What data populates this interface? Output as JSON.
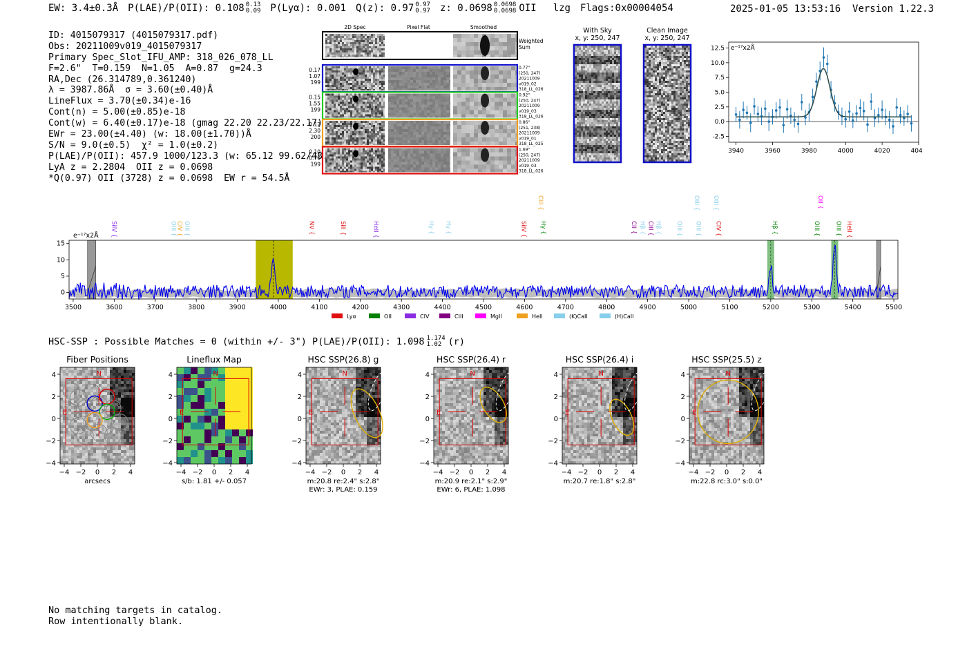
{
  "header": {
    "ew": "EW: 3.4±0.3Å",
    "plae": "P(LAE)/P(OII): 0.108",
    "plae_hi": "0.13",
    "plae_lo": "0.09",
    "plya": "P(Lyα): 0.001",
    "qz": "Q(z): 0.97",
    "qz_hi": "0.97",
    "qz_lo": "0.97",
    "z": "z: 0.0698",
    "z_hi": "0.0698",
    "z_lo": "0.0698",
    "line": "OII",
    "lzg": "lzg",
    "flags": "Flags:0x00004054",
    "timestamp": "2025-01-05 13:53:16",
    "version": "Version 1.22.3"
  },
  "info_lines": [
    "ID: 4015079317 (4015079317.pdf)",
    "Obs: 20211009v019_4015079317",
    "Primary Spec_Slot_IFU_AMP: 318_026_078_LL",
    "F=2.6\"  T=0.159  N=1.05  A=0.87  g=24.3",
    "RA,Dec (26.314789,0.361240)",
    "λ = 3987.86Å  σ = 3.60(±0.40)Å",
    "LineFlux = 3.70(±0.34)e-16",
    "Cont(n) = 5.00(±0.85)e-18",
    "Cont(w) = 6.40(±0.17)e-18 (gmag 22.20 22.23/22.17)",
    "EWr = 23.00(±4.40) (w: 18.00(±1.70))Å",
    "S/N = 9.0(±0.5)  χ² = 1.0(±0.2)",
    "P(LAE)/P(OII): 457.9 1000/123.3 (w: 65.12 99.62/48.66)",
    "LyA z = 2.2804  OII z = 0.0698",
    "*Q(0.97) OII (3728) z = 0.0698  EW r = 54.5Å"
  ],
  "cutouts": {
    "col_titles": [
      "2D Spec",
      "Pixel Flat",
      "Smoothed"
    ],
    "weighted_label": "Weighted Sum",
    "rows": [
      {
        "left": [
          "0.17",
          "1.07",
          "199"
        ],
        "right": [
          "0.77\"",
          "(250, 247)",
          "20211009",
          "v019_02",
          "318_LL_026"
        ],
        "color": "#1010c8"
      },
      {
        "left": [
          "0.15",
          "1.55",
          "199"
        ],
        "right": [
          "0.92\"",
          "(250, 247)",
          "20211009",
          "v019_03",
          "318_LL_026"
        ],
        "color": "#22cc22"
      },
      {
        "left": [
          "0.12",
          "2.30",
          "200"
        ],
        "right": [
          "0.86\"",
          "(251, 238)",
          "20211009",
          "v019_01",
          "318_LL_025"
        ],
        "color": "#f0a020"
      },
      {
        "left": [
          "0.10",
          "0.70",
          "199"
        ],
        "right": [
          "1.69\"",
          "(250, 247)",
          "20211009",
          "v019_03",
          "318_LL_026"
        ],
        "color": "#e01010"
      }
    ]
  },
  "sky": {
    "with_sky_title": "With Sky",
    "with_sky_xy": "x, y: 250, 247",
    "clean_title": "Clean Image",
    "clean_xy": "x, y: 250, 247"
  },
  "chart_data": [
    {
      "type": "scatter",
      "title": "line fit",
      "ylabel": "e⁻¹⁷x2Å",
      "xlim": [
        3936,
        4040
      ],
      "ylim": [
        -3.5,
        13.5
      ],
      "xticks": [
        3940,
        3960,
        3980,
        4000,
        4020,
        4040
      ],
      "yticks": [
        12.5,
        10.0,
        7.5,
        5.0,
        2.5,
        0.0,
        -2.5
      ],
      "fit": {
        "center": 3987.86,
        "sigma": 3.6,
        "amplitude": 8.2,
        "continuum": 0.8
      },
      "x": [
        3940,
        3942,
        3944,
        3946,
        3948,
        3950,
        3952,
        3954,
        3956,
        3958,
        3960,
        3962,
        3964,
        3966,
        3968,
        3970,
        3972,
        3974,
        3976,
        3978,
        3980,
        3982,
        3984,
        3986,
        3988,
        3990,
        3992,
        3994,
        3996,
        3998,
        4000,
        4002,
        4004,
        4006,
        4008,
        4010,
        4012,
        4014,
        4016,
        4018,
        4020,
        4022,
        4024,
        4026,
        4028,
        4030,
        4032,
        4034,
        4036
      ],
      "y": [
        1.2,
        0.3,
        2.0,
        1.5,
        -0.2,
        2.6,
        1.3,
        0.9,
        2.2,
        0.0,
        0.8,
        1.9,
        2.4,
        -0.6,
        2.1,
        1.0,
        0.3,
        -0.4,
        3.3,
        0.7,
        1.6,
        4.2,
        6.8,
        8.6,
        10.9,
        9.8,
        5.4,
        3.1,
        1.6,
        0.9,
        0.4,
        1.7,
        0.2,
        1.4,
        2.3,
        1.8,
        -0.5,
        3.4,
        0.6,
        1.1,
        2.0,
        0.8,
        0.3,
        -0.8,
        2.4,
        1.1,
        0.6,
        1.3,
        -0.3
      ],
      "err": [
        1.3,
        1.5,
        1.4,
        1.2,
        1.6,
        1.4,
        1.3,
        1.5,
        1.4,
        1.6,
        1.3,
        1.4,
        1.5,
        1.3,
        1.6,
        1.4,
        1.3,
        1.5,
        1.4,
        1.3,
        1.5,
        1.4,
        1.5,
        1.6,
        1.7,
        1.6,
        1.5,
        1.4,
        1.3,
        1.5,
        1.4,
        1.6,
        1.3,
        1.4,
        1.5,
        1.6,
        1.3,
        1.4,
        1.5,
        1.3,
        1.6,
        1.4,
        1.5,
        1.3,
        1.6,
        1.4,
        1.3,
        1.5,
        1.4
      ]
    },
    {
      "type": "line",
      "title": "full spectrum",
      "ylabel": "e⁻¹⁷x2Å",
      "xlim": [
        3490,
        5510
      ],
      "ylim": [
        -2,
        16
      ],
      "xticks": [
        3500,
        3600,
        3700,
        3800,
        3900,
        4000,
        4100,
        4200,
        4300,
        4400,
        4500,
        4600,
        4700,
        4800,
        4900,
        5000,
        5100,
        5200,
        5300,
        5400,
        5500
      ],
      "yticks": [
        15,
        10,
        5,
        0
      ],
      "peaks": [
        {
          "x": 3988,
          "height": 11
        },
        {
          "x": 5200,
          "height": 7.5
        },
        {
          "x": 5356,
          "height": 14.5
        }
      ],
      "noise_level": 2.0,
      "highlight": {
        "x0": 3945,
        "x1": 4035
      },
      "line_bands": [
        5200,
        5356
      ],
      "gray_bands": [
        {
          "x0": 3535,
          "x1": 3555
        },
        {
          "x0": 5458,
          "x1": 5468
        }
      ],
      "lines": [
        {
          "label": "SiIV",
          "x": 3590,
          "row": 1,
          "color": "#8a2be2"
        },
        {
          "label": "OIII",
          "x": 3735,
          "row": 1,
          "color": "#87ceeb"
        },
        {
          "label": "CIV",
          "x": 3750,
          "row": 1,
          "color": "#f0a020"
        },
        {
          "label": "OIII",
          "x": 3768,
          "row": 1,
          "color": "#87ceeb"
        },
        {
          "label": "NV",
          "x": 4072,
          "row": 1,
          "color": "#e01010"
        },
        {
          "label": "SiII",
          "x": 4148,
          "row": 1,
          "color": "#e01010"
        },
        {
          "label": "HeII",
          "x": 4228,
          "row": 1,
          "color": "#8a2be2"
        },
        {
          "label": "Hγ",
          "x": 4363,
          "row": 1,
          "color": "#87ceeb"
        },
        {
          "label": "Hγ",
          "x": 4405,
          "row": 1,
          "color": "#87ceeb"
        },
        {
          "label": "SiIV",
          "x": 4588,
          "row": 1,
          "color": "#e01010"
        },
        {
          "label": "CIII",
          "x": 4630,
          "row": 0,
          "color": "#f0a020"
        },
        {
          "label": "Hγ",
          "x": 4636,
          "row": 1,
          "color": "#008000"
        },
        {
          "label": "CII",
          "x": 4857,
          "row": 1,
          "color": "#8b008b"
        },
        {
          "label": "Hβ",
          "x": 4878,
          "row": 1,
          "color": "#87ceeb"
        },
        {
          "label": "CIII",
          "x": 4898,
          "row": 1,
          "color": "#8b008b"
        },
        {
          "label": "Hβ",
          "x": 4917,
          "row": 1,
          "color": "#87ceeb"
        },
        {
          "label": "OIII",
          "x": 4968,
          "row": 1,
          "color": "#87ceeb"
        },
        {
          "label": "OIII",
          "x": 5010,
          "row": 0,
          "color": "#87ceeb"
        },
        {
          "label": "OIII",
          "x": 5014,
          "row": 1,
          "color": "#87ceeb"
        },
        {
          "label": "CIV",
          "x": 5063,
          "row": 1,
          "color": "#e01010"
        },
        {
          "label": "OIII",
          "x": 5057,
          "row": 0,
          "color": "#87ceeb"
        },
        {
          "label": "Hβ",
          "x": 5200,
          "row": 1,
          "color": "#008000"
        },
        {
          "label": "OIII",
          "x": 5303,
          "row": 1,
          "color": "#008000"
        },
        {
          "label": "OII",
          "x": 5311,
          "row": 0,
          "color": "#ff00ff"
        },
        {
          "label": "OIII",
          "x": 5356,
          "row": 1,
          "color": "#008000"
        },
        {
          "label": "HeII",
          "x": 5382,
          "row": 1,
          "color": "#e01010"
        }
      ],
      "legend": [
        {
          "label": "Lyα",
          "color": "#e01010"
        },
        {
          "label": "OII",
          "color": "#008000"
        },
        {
          "label": "CIV",
          "color": "#8a2be2"
        },
        {
          "label": "CIII",
          "color": "#800080"
        },
        {
          "label": "MgII",
          "color": "#ff00ff"
        },
        {
          "label": "HeII",
          "color": "#f0a020"
        },
        {
          "label": "(K)CaII",
          "color": "#87ceeb"
        },
        {
          "label": "(H)CaII",
          "color": "#87ceeb"
        }
      ]
    }
  ],
  "hsc": {
    "header": "HSC-SSP : Possible Matches = 0 (within +/- 3\")  P(LAE)/P(OII): 1.098",
    "header_hi": "1.174",
    "header_lo": "1.02",
    "header_tail": "(r)",
    "ticks": [
      "−4",
      "−2",
      "0",
      "2",
      "4"
    ],
    "panels": [
      {
        "title": "Fiber Positions",
        "captions": [
          "arcsecs"
        ]
      },
      {
        "title": "Lineflux Map",
        "captions": [
          "s/b: 1.81 +/- 0.057"
        ]
      },
      {
        "title": "HSC SSP(26.8) g",
        "captions": [
          "m:20.8  re:2.4\"  s:2.8\"",
          "EWr: 3, PLAE: 0.159"
        ]
      },
      {
        "title": "HSC SSP(26.4) r",
        "captions": [
          "m:20.9  re:2.1\"  s:2.9\"",
          "EWr: 6, PLAE: 1.098"
        ]
      },
      {
        "title": "HSC SSP(26.4) i",
        "captions": [
          "m:20.7  re:1.8\"  s:2.8\""
        ]
      },
      {
        "title": "HSC SSP(25.5) z",
        "captions": [
          "m:22.8  rc:3.0\"  s:0.0\""
        ]
      }
    ],
    "compass_n": "N",
    "compass_e": "E"
  },
  "footer": {
    "line1": "No matching targets in catalog.",
    "line2": "Row intentionally blank."
  }
}
